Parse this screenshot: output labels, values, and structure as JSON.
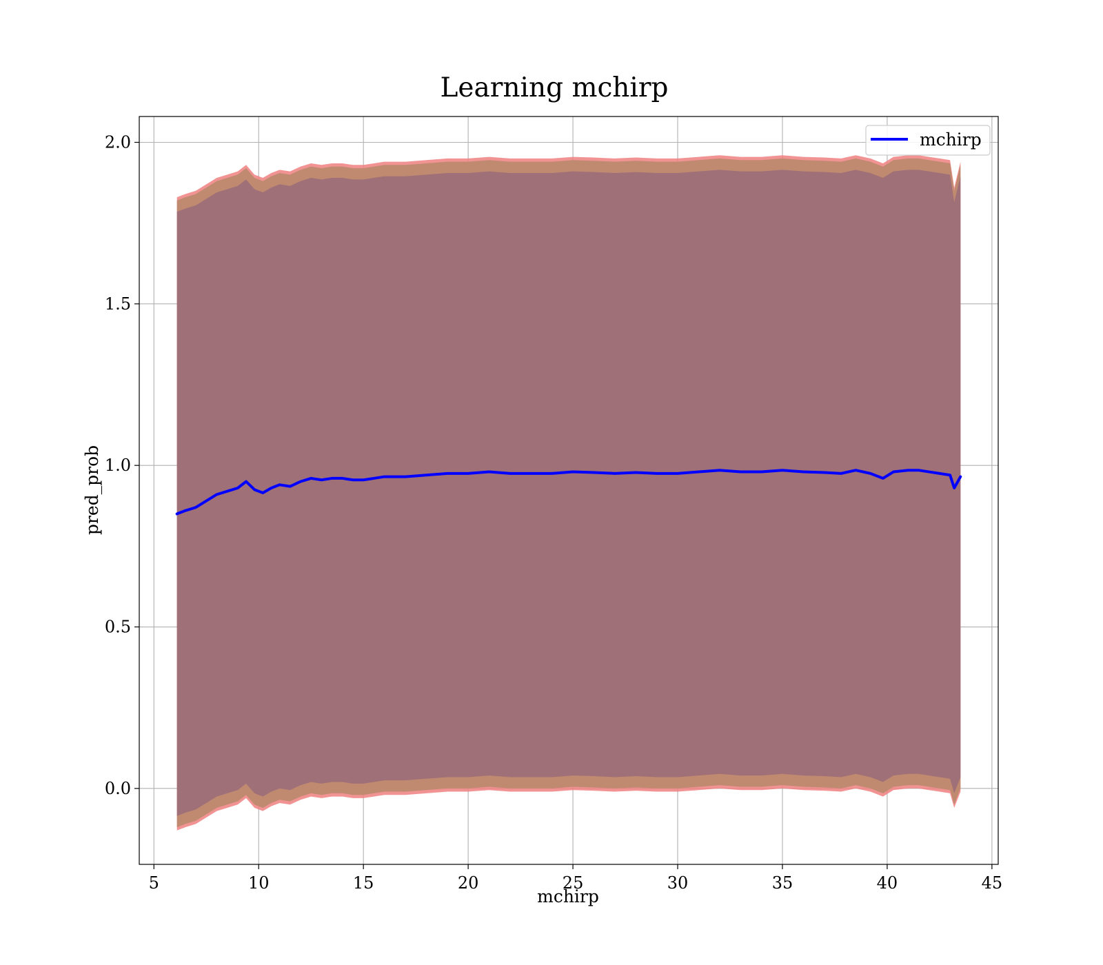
{
  "chart_data": {
    "type": "line",
    "title": "Learning mchirp",
    "xlabel": "mchirp",
    "ylabel": "pred_prob",
    "xlim": [
      4.3,
      45.3
    ],
    "ylim": [
      -0.235,
      2.08
    ],
    "xticks": [
      5,
      10,
      15,
      20,
      25,
      30,
      35,
      40,
      45
    ],
    "yticks": [
      0.0,
      0.5,
      1.0,
      1.5,
      2.0
    ],
    "xtick_labels": [
      "5",
      "10",
      "15",
      "20",
      "25",
      "30",
      "35",
      "40",
      "45"
    ],
    "ytick_labels": [
      "0.0",
      "0.5",
      "1.0",
      "1.5",
      "2.0"
    ],
    "grid": true,
    "legend_position": "top-right",
    "colors": {
      "line": "#0000ff",
      "band_outer": "#f08080",
      "band_mid": "#c08a70",
      "band_inner": "#a07078",
      "grid": "#b0b0b0"
    },
    "series": [
      {
        "name": "mchirp",
        "x": [
          6.1,
          6.5,
          7.0,
          7.5,
          8.0,
          8.5,
          9.0,
          9.4,
          9.8,
          10.2,
          10.6,
          11.0,
          11.5,
          12.0,
          12.5,
          13.0,
          13.5,
          14.0,
          14.5,
          15.0,
          15.5,
          16.0,
          17.0,
          18.0,
          19.0,
          20.0,
          21.0,
          22.0,
          23.0,
          24.0,
          25.0,
          26.0,
          27.0,
          28.0,
          29.0,
          30.0,
          31.0,
          32.0,
          33.0,
          34.0,
          35.0,
          36.0,
          37.0,
          37.8,
          38.5,
          39.2,
          39.8,
          40.3,
          41.0,
          41.5,
          42.0,
          42.5,
          43.0,
          43.2,
          43.5
        ],
        "y": [
          0.85,
          0.86,
          0.87,
          0.89,
          0.91,
          0.92,
          0.93,
          0.95,
          0.925,
          0.915,
          0.93,
          0.94,
          0.935,
          0.95,
          0.96,
          0.955,
          0.96,
          0.96,
          0.955,
          0.955,
          0.96,
          0.965,
          0.965,
          0.97,
          0.975,
          0.975,
          0.98,
          0.975,
          0.975,
          0.975,
          0.98,
          0.978,
          0.975,
          0.978,
          0.975,
          0.975,
          0.98,
          0.985,
          0.98,
          0.98,
          0.985,
          0.98,
          0.978,
          0.975,
          0.985,
          0.975,
          0.96,
          0.98,
          0.985,
          0.985,
          0.98,
          0.975,
          0.97,
          0.93,
          0.965
        ],
        "upper": [
          1.83,
          1.84,
          1.85,
          1.87,
          1.89,
          1.9,
          1.91,
          1.93,
          1.9,
          1.89,
          1.905,
          1.915,
          1.91,
          1.925,
          1.935,
          1.93,
          1.935,
          1.935,
          1.93,
          1.93,
          1.935,
          1.94,
          1.94,
          1.945,
          1.95,
          1.95,
          1.955,
          1.95,
          1.95,
          1.95,
          1.955,
          1.953,
          1.95,
          1.953,
          1.95,
          1.95,
          1.955,
          1.96,
          1.955,
          1.955,
          1.96,
          1.955,
          1.953,
          1.95,
          1.96,
          1.95,
          1.935,
          1.955,
          1.96,
          1.96,
          1.955,
          1.95,
          1.945,
          1.86,
          1.94
        ],
        "lower": [
          -0.13,
          -0.12,
          -0.11,
          -0.09,
          -0.07,
          -0.06,
          -0.05,
          -0.03,
          -0.06,
          -0.07,
          -0.055,
          -0.045,
          -0.05,
          -0.035,
          -0.025,
          -0.03,
          -0.025,
          -0.025,
          -0.03,
          -0.03,
          -0.025,
          -0.02,
          -0.02,
          -0.015,
          -0.01,
          -0.01,
          -0.005,
          -0.01,
          -0.01,
          -0.01,
          -0.005,
          -0.007,
          -0.01,
          -0.007,
          -0.01,
          -0.01,
          -0.005,
          0.0,
          -0.005,
          -0.005,
          0.0,
          -0.005,
          -0.007,
          -0.01,
          0.0,
          -0.01,
          -0.025,
          -0.005,
          0.0,
          0.0,
          -0.005,
          -0.01,
          -0.015,
          -0.06,
          -0.01
        ]
      }
    ]
  }
}
